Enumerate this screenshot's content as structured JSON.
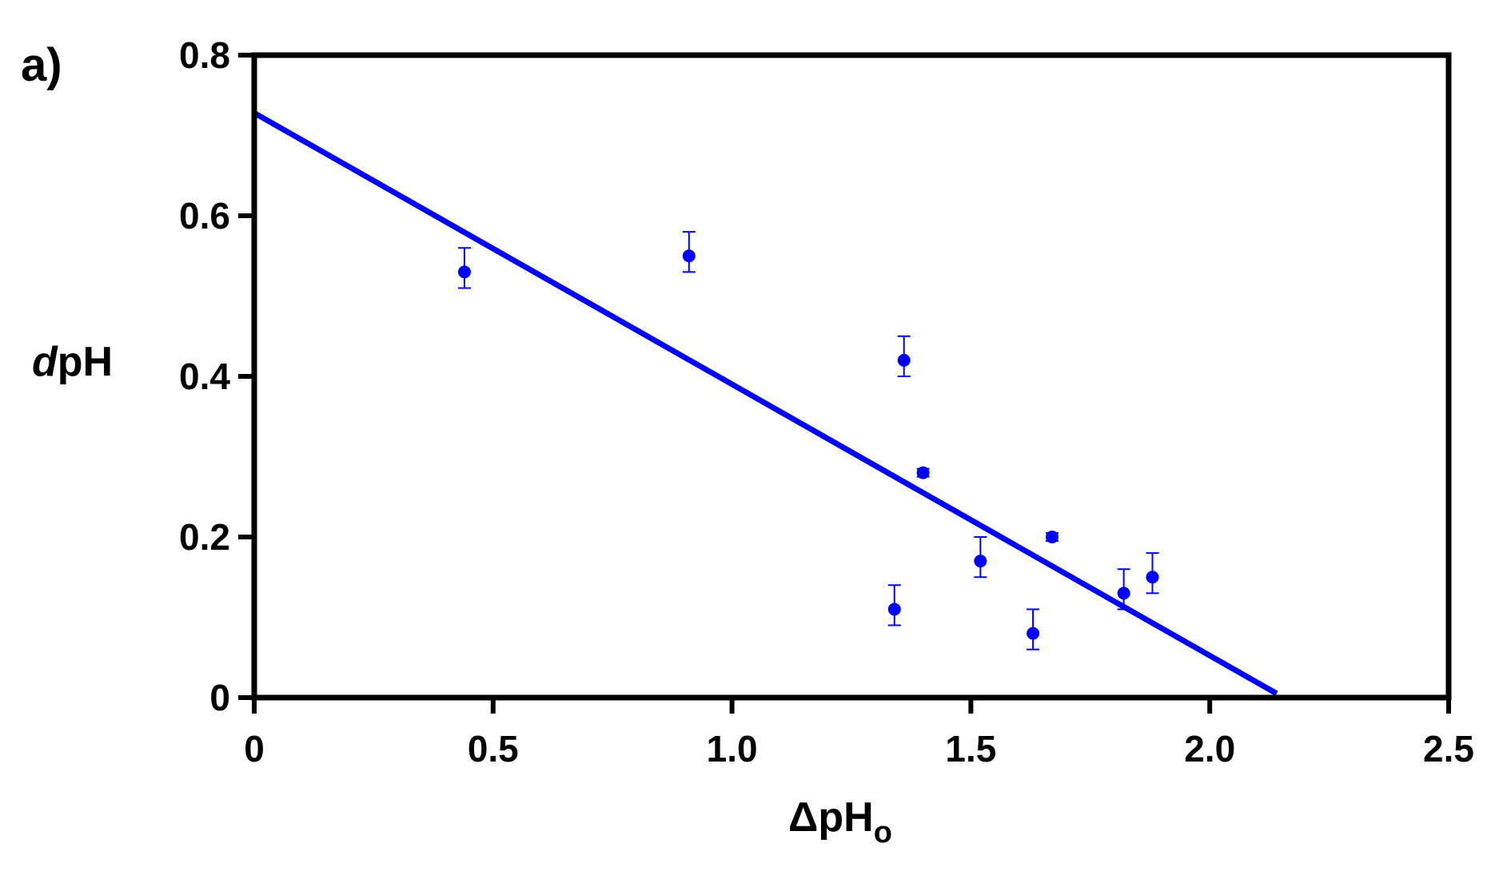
{
  "panel_label": "a)",
  "chart_data": {
    "type": "scatter",
    "title": "",
    "xlabel": "ΔpH",
    "xlabel_subscript": "o",
    "ylabel_italic": "d",
    "ylabel_rest": "pH",
    "xlim": [
      0,
      2.5
    ],
    "ylim": [
      0,
      0.8
    ],
    "x_ticks": [
      0,
      0.5,
      1.0,
      1.5,
      2.0,
      2.5
    ],
    "x_tick_labels": [
      "0",
      "0.5",
      "1.0",
      "1.5",
      "2.0",
      "2.5"
    ],
    "y_ticks": [
      0,
      0.2,
      0.4,
      0.6,
      0.8
    ],
    "y_tick_labels": [
      "0",
      "0.2",
      "0.4",
      "0.6",
      "0.8"
    ],
    "grid": false,
    "color": "#0000ff",
    "points": [
      {
        "x": 0.44,
        "y": 0.53,
        "err_low": 0.02,
        "err_high": 0.03
      },
      {
        "x": 0.91,
        "y": 0.55,
        "err_low": 0.02,
        "err_high": 0.03
      },
      {
        "x": 1.34,
        "y": 0.11,
        "err_low": 0.02,
        "err_high": 0.03
      },
      {
        "x": 1.36,
        "y": 0.42,
        "err_low": 0.02,
        "err_high": 0.03
      },
      {
        "x": 1.4,
        "y": 0.28,
        "err_low": 0.005,
        "err_high": 0.005
      },
      {
        "x": 1.52,
        "y": 0.17,
        "err_low": 0.02,
        "err_high": 0.03
      },
      {
        "x": 1.63,
        "y": 0.08,
        "err_low": 0.02,
        "err_high": 0.03
      },
      {
        "x": 1.67,
        "y": 0.2,
        "err_low": 0.005,
        "err_high": 0.005
      },
      {
        "x": 1.82,
        "y": 0.13,
        "err_low": 0.02,
        "err_high": 0.03
      },
      {
        "x": 1.88,
        "y": 0.15,
        "err_low": 0.02,
        "err_high": 0.03
      }
    ],
    "fit_line": {
      "x_start": 0,
      "y_start": 0.728,
      "x_end": 2.14,
      "y_end": 0.005
    }
  }
}
